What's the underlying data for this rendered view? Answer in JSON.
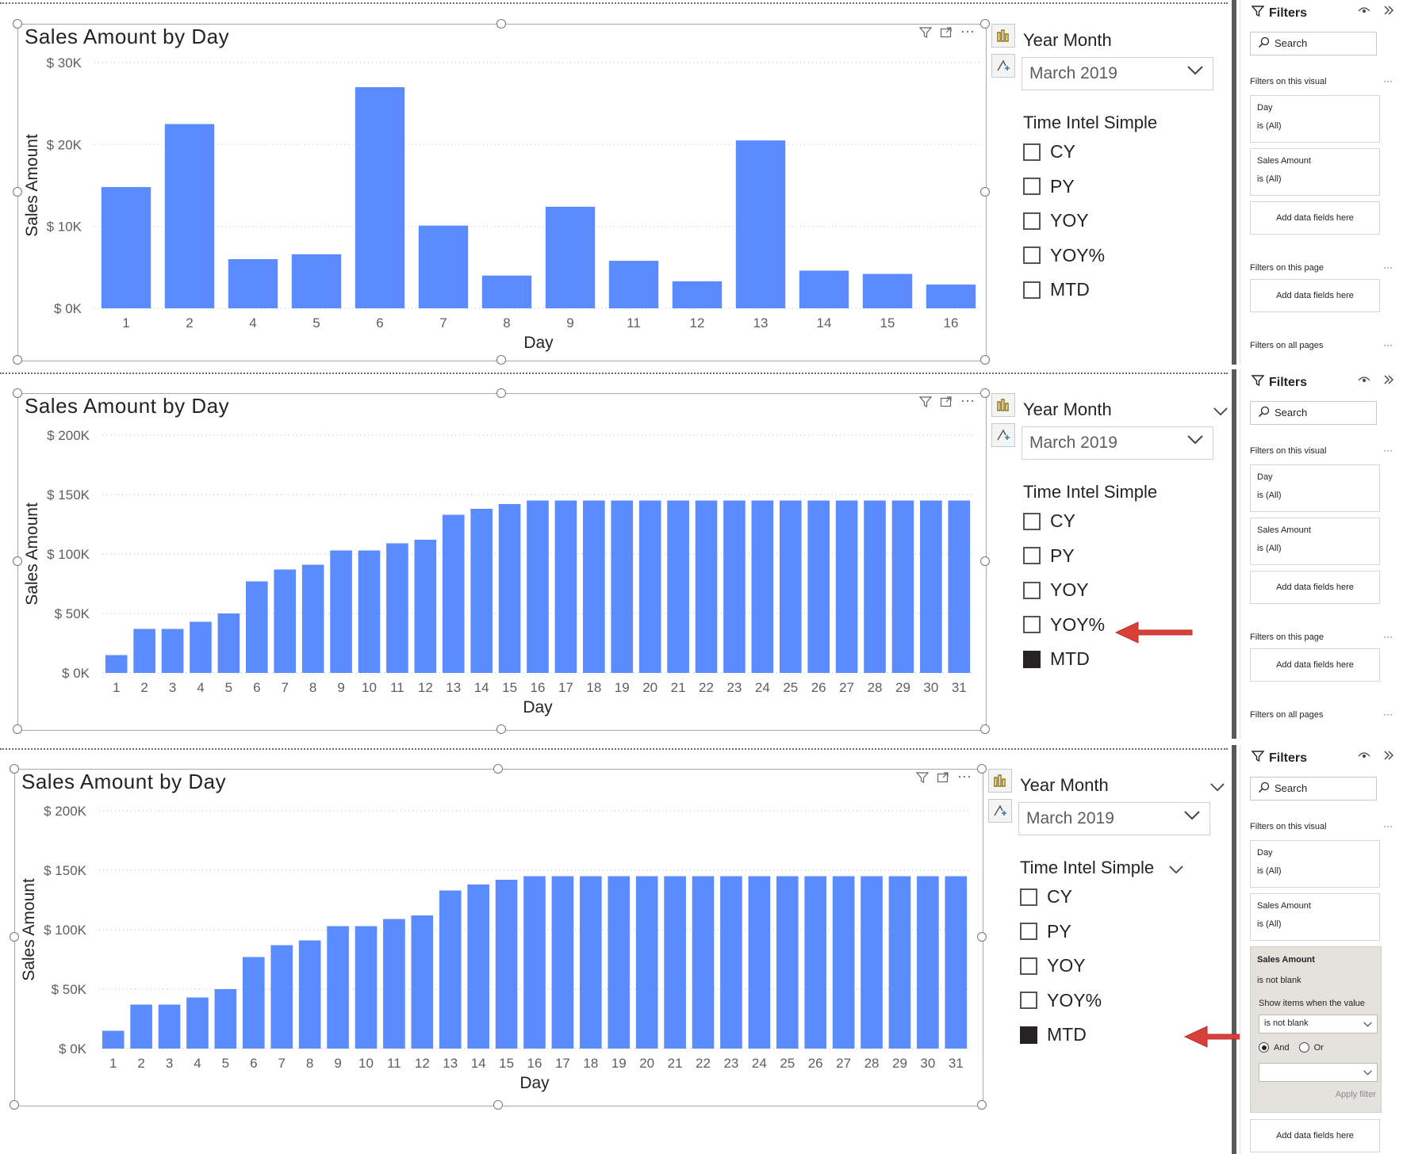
{
  "panels": [
    {
      "title": "Sales Amount by Day",
      "ylabel": "Sales Amount",
      "xlabel": "Day",
      "slicer1": {
        "title": "Year Month",
        "value": "March 2019",
        "title_chevron": false
      },
      "slicer2": {
        "title": "Time Intel Simple",
        "title_chevron": false,
        "options": [
          {
            "label": "CY",
            "checked": false
          },
          {
            "label": "PY",
            "checked": false
          },
          {
            "label": "YOY",
            "checked": false
          },
          {
            "label": "YOY%",
            "checked": false
          },
          {
            "label": "MTD",
            "checked": false
          }
        ]
      },
      "filters": {
        "header": "Filters",
        "search": "Search",
        "visual_label": "Filters on this visual",
        "cards": [
          {
            "a": "Day",
            "b": "is (All)"
          },
          {
            "a": "Sales Amount",
            "b": "is (All)"
          }
        ],
        "add": "Add data fields here",
        "page_label": "Filters on this page",
        "page_add": "Add data fields here",
        "all_label": "Filters on all pages"
      },
      "arrow": false
    },
    {
      "title": "Sales Amount by Day",
      "ylabel": "Sales Amount",
      "xlabel": "Day",
      "slicer1": {
        "title": "Year Month",
        "value": "March 2019",
        "title_chevron": true
      },
      "slicer2": {
        "title": "Time Intel Simple",
        "title_chevron": false,
        "options": [
          {
            "label": "CY",
            "checked": false
          },
          {
            "label": "PY",
            "checked": false
          },
          {
            "label": "YOY",
            "checked": false
          },
          {
            "label": "YOY%",
            "checked": false
          },
          {
            "label": "MTD",
            "checked": true
          }
        ]
      },
      "filters": {
        "header": "Filters",
        "search": "Search",
        "visual_label": "Filters on this visual",
        "cards": [
          {
            "a": "Day",
            "b": "is (All)"
          },
          {
            "a": "Sales Amount",
            "b": "is (All)"
          }
        ],
        "add": "Add data fields here",
        "page_label": "Filters on this page",
        "page_add": "Add data fields here",
        "all_label": "Filters on all pages"
      },
      "arrow": true
    },
    {
      "title": "Sales Amount by Day",
      "ylabel": "Sales Amount",
      "xlabel": "Day",
      "slicer1": {
        "title": "Year Month",
        "value": "March 2019",
        "title_chevron": true
      },
      "slicer2": {
        "title": "Time Intel Simple",
        "title_chevron": true,
        "options": [
          {
            "label": "CY",
            "checked": false
          },
          {
            "label": "PY",
            "checked": false
          },
          {
            "label": "YOY",
            "checked": false
          },
          {
            "label": "YOY%",
            "checked": false
          },
          {
            "label": "MTD",
            "checked": true
          }
        ]
      },
      "filters": {
        "header": "Filters",
        "search": "Search",
        "visual_label": "Filters on this visual",
        "cards": [
          {
            "a": "Day",
            "b": "is (All)"
          },
          {
            "a": "Sales Amount",
            "b": "is (All)"
          }
        ],
        "expanded": {
          "title": "Sales Amount",
          "subtitle": "is not blank",
          "show_label": "Show items when the value",
          "select_value": "is not blank",
          "and_label": "And",
          "or_label": "Or",
          "apply": "Apply filter"
        },
        "add": "Add data fields here"
      },
      "arrow": true
    }
  ],
  "chart_data": [
    {
      "type": "bar",
      "title": "Sales Amount by Day",
      "xlabel": "Day",
      "ylabel": "Sales Amount",
      "categories": [
        "1",
        "2",
        "4",
        "5",
        "6",
        "7",
        "8",
        "9",
        "11",
        "12",
        "13",
        "14",
        "15",
        "16"
      ],
      "values": [
        14800,
        22500,
        6000,
        6600,
        27000,
        10100,
        4000,
        12400,
        5800,
        3300,
        20500,
        4600,
        4200,
        2900
      ],
      "yticks": [
        "$ 0K",
        "$ 10K",
        "$ 20K",
        "$ 30K"
      ],
      "ylim": [
        0,
        30000
      ],
      "grid": true,
      "color": "#5b8cff"
    },
    {
      "type": "bar",
      "title": "Sales Amount by Day",
      "xlabel": "Day",
      "ylabel": "Sales Amount",
      "categories": [
        "1",
        "2",
        "3",
        "4",
        "5",
        "6",
        "7",
        "8",
        "9",
        "10",
        "11",
        "12",
        "13",
        "14",
        "15",
        "16",
        "17",
        "18",
        "19",
        "20",
        "21",
        "22",
        "23",
        "24",
        "25",
        "26",
        "27",
        "28",
        "29",
        "30",
        "31"
      ],
      "values": [
        15000,
        37000,
        37000,
        43000,
        50000,
        77000,
        87000,
        91000,
        103000,
        103000,
        109000,
        112000,
        133000,
        138000,
        142000,
        145000,
        145000,
        145000,
        145000,
        145000,
        145000,
        145000,
        145000,
        145000,
        145000,
        145000,
        145000,
        145000,
        145000,
        145000,
        145000
      ],
      "yticks": [
        "$ 0K",
        "$ 50K",
        "$ 100K",
        "$ 150K",
        "$ 200K"
      ],
      "ylim": [
        0,
        200000
      ],
      "grid": true,
      "color": "#5b8cff"
    },
    {
      "type": "bar",
      "title": "Sales Amount by Day",
      "xlabel": "Day",
      "ylabel": "Sales Amount",
      "categories": [
        "1",
        "2",
        "3",
        "4",
        "5",
        "6",
        "7",
        "8",
        "9",
        "10",
        "11",
        "12",
        "13",
        "14",
        "15",
        "16",
        "17",
        "18",
        "19",
        "20",
        "21",
        "22",
        "23",
        "24",
        "25",
        "26",
        "27",
        "28",
        "29",
        "30",
        "31"
      ],
      "values": [
        15000,
        37000,
        37000,
        43000,
        50000,
        77000,
        87000,
        91000,
        103000,
        103000,
        109000,
        112000,
        133000,
        138000,
        142000,
        145000,
        145000,
        145000,
        145000,
        145000,
        145000,
        145000,
        145000,
        145000,
        145000,
        145000,
        145000,
        145000,
        145000,
        145000,
        145000
      ],
      "yticks": [
        "$ 0K",
        "$ 50K",
        "$ 100K",
        "$ 150K",
        "$ 200K"
      ],
      "ylim": [
        0,
        200000
      ],
      "grid": true,
      "color": "#5b8cff"
    }
  ]
}
